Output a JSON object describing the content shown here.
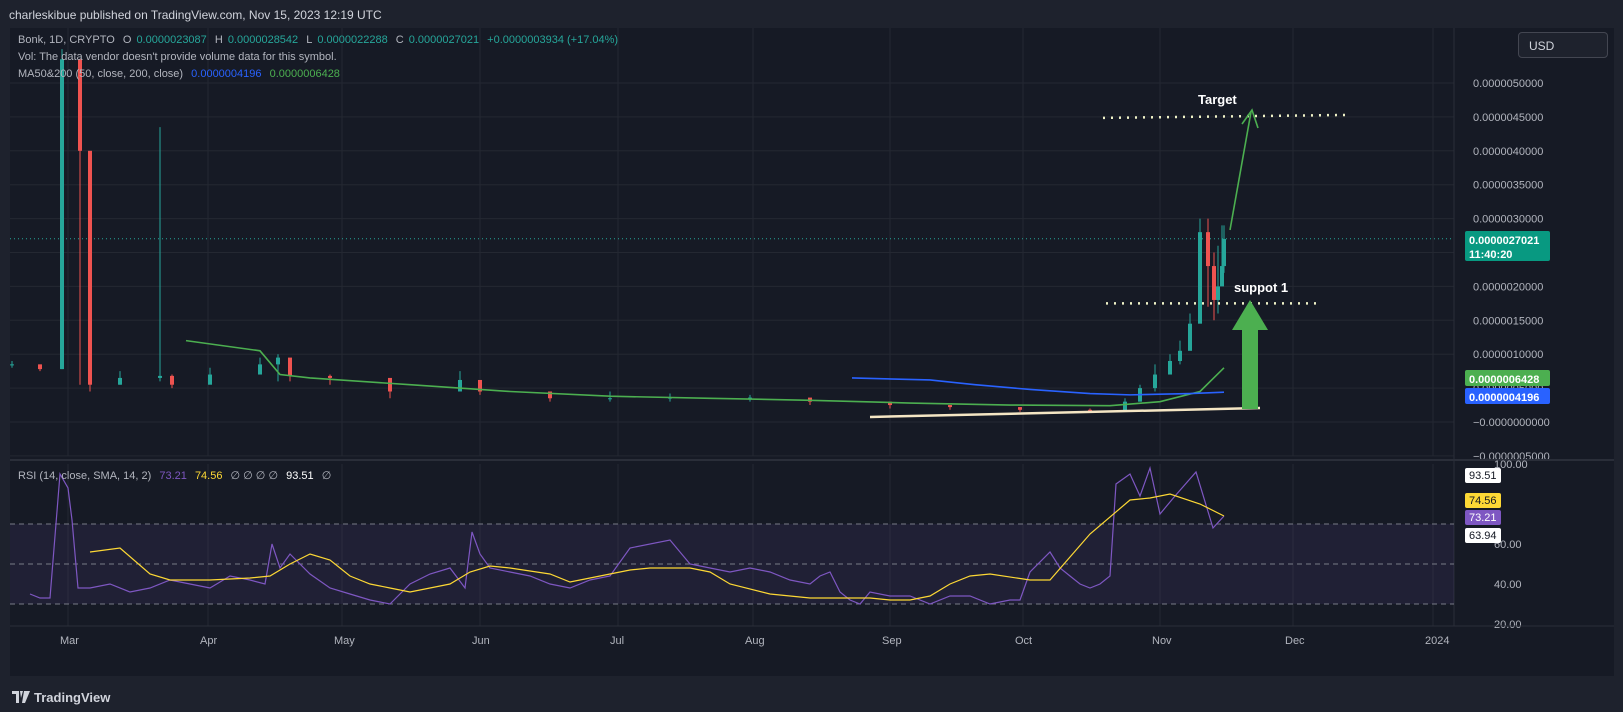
{
  "header": {
    "published": "charleskibue published on TradingView.com, Nov 15, 2023 12:19 UTC"
  },
  "legend": {
    "symbol": "Bonk, 1D, CRYPTO",
    "o_label": "O",
    "o": "0.0000023087",
    "h_label": "H",
    "h": "0.0000028542",
    "l_label": "L",
    "l": "0.0000022288",
    "c_label": "C",
    "c": "0.0000027021",
    "change": "+0.0000003934 (+17.04%)",
    "vol": "Vol: The data vendor doesn't provide volume data for this symbol.",
    "ma_label": "MA50&200 (50, close, 200, close)",
    "ma50": "0.0000004196",
    "ma200": "0.0000006428",
    "rsi_label": "RSI (14, close, SMA, 14, 2)",
    "rsi_value": "73.21",
    "rsi_sma": "74.56",
    "rsi_na": "∅ ∅ ∅ ∅",
    "rsi_extra": "93.51",
    "rsi_na2": "∅"
  },
  "currency_button": "USD",
  "price_axis": {
    "ticks": [
      "0.0000050000",
      "0.0000045000",
      "0.0000040000",
      "0.0000035000",
      "0.0000030000",
      "0.0000025000",
      "0.0000020000",
      "0.0000015000",
      "0.0000010000",
      "0.0000005000",
      "−0.0000000000",
      "−0.0000005000"
    ],
    "tick_values": [
      5.0,
      4.5,
      4.0,
      3.5,
      3.0,
      2.5,
      2.0,
      1.5,
      1.0,
      0.5,
      0.0,
      -0.5
    ],
    "current_price": "0.0000027021",
    "countdown": "11:40:20",
    "ma200_tag": "0.0000006428",
    "ma50_tag": "0.0000004196"
  },
  "rsi_axis": {
    "ticks": [
      "100.00",
      "60.00",
      "40.00",
      "20.00"
    ],
    "tick_values": [
      100,
      60,
      40,
      20
    ],
    "tags": [
      "93.51",
      "74.56",
      "73.21",
      "63.94"
    ],
    "tag_values": [
      93.51,
      74.56,
      73.21,
      63.94
    ]
  },
  "time_axis": {
    "labels": [
      "Mar",
      "Apr",
      "May",
      "Jun",
      "Jul",
      "Aug",
      "Sep",
      "Oct",
      "Nov",
      "Dec",
      "2024"
    ]
  },
  "annotations": {
    "target": "Target",
    "support": "suppot 1"
  },
  "footer": {
    "brand": "TradingView"
  },
  "colors": {
    "background": "#161a25",
    "up": "#26a69a",
    "down": "#ef5350",
    "ma50": "#2962ff",
    "ma200": "#4caf50",
    "rsi": "#7e57c2",
    "rsi_sma": "#fdd835",
    "grid": "#242832"
  },
  "chart_data": [
    {
      "type": "candlestick",
      "title": "Bonk, 1D, CRYPTO",
      "y_scale": "0.000001 units",
      "ylim": [
        -0.5,
        5.4
      ],
      "x": [
        "Feb 22",
        "Feb 26",
        "Feb 28",
        "Mar 1",
        "Mar 3",
        "Mar 10",
        "Mar 20",
        "Mar 23",
        "Apr 1",
        "Apr 15",
        "Apr 22",
        "Apr 25",
        "May 1",
        "May 15",
        "May 28",
        "Jun 1",
        "Jun 15",
        "Jul 1",
        "Jul 15",
        "Aug 1",
        "Aug 15",
        "Sep 1",
        "Sep 15",
        "Oct 1",
        "Oct 15",
        "Oct 20",
        "Oct 25",
        "Oct 28",
        "Nov 1",
        "Nov 3",
        "Nov 5",
        "Nov 7",
        "Nov 9",
        "Nov 10",
        "Nov 12",
        "Nov 14",
        "Nov 15"
      ],
      "close": [
        0.85,
        0.78,
        5.35,
        4.0,
        0.55,
        0.65,
        0.68,
        0.55,
        0.7,
        0.85,
        0.95,
        0.68,
        0.65,
        0.45,
        0.62,
        0.45,
        0.35,
        0.35,
        0.36,
        0.36,
        0.3,
        0.25,
        0.22,
        0.18,
        0.17,
        0.3,
        0.5,
        0.7,
        0.9,
        1.05,
        1.45,
        2.8,
        2.3,
        1.8,
        2.0,
        2.3,
        2.7
      ],
      "high": [
        0.9,
        0.85,
        5.5,
        4.5,
        0.7,
        0.75,
        4.35,
        0.7,
        0.8,
        0.95,
        1.0,
        0.75,
        0.7,
        0.55,
        0.75,
        0.5,
        0.4,
        0.45,
        0.42,
        0.4,
        0.35,
        0.3,
        0.25,
        0.22,
        0.2,
        0.35,
        0.55,
        0.85,
        1.0,
        1.2,
        1.6,
        3.0,
        3.0,
        2.5,
        2.6,
        2.9,
        2.9
      ],
      "low": [
        0.8,
        0.75,
        0.78,
        0.55,
        0.45,
        0.55,
        0.6,
        0.5,
        0.6,
        0.75,
        0.6,
        0.6,
        0.55,
        0.35,
        0.5,
        0.4,
        0.3,
        0.3,
        0.3,
        0.3,
        0.25,
        0.2,
        0.18,
        0.15,
        0.15,
        0.18,
        0.3,
        0.45,
        0.7,
        0.85,
        1.1,
        1.6,
        1.7,
        1.5,
        1.6,
        2.1,
        2.2
      ],
      "ma50": {
        "start": "Aug 22",
        "values": [
          0.65,
          0.62,
          0.55,
          0.48,
          0.42,
          0.4,
          0.42,
          0.44
        ]
      },
      "ma200": {
        "start": "Mar 23",
        "values": [
          1.2,
          1.05,
          0.7,
          0.65,
          0.55,
          0.45,
          0.38,
          0.35,
          0.32,
          0.28,
          0.25,
          0.24,
          0.3,
          0.45,
          0.8
        ]
      },
      "current_price": 2.7021,
      "annotations": [
        {
          "text": "Target",
          "level": 4.5
        },
        {
          "text": "suppot 1",
          "level": 1.75
        }
      ]
    },
    {
      "type": "line",
      "title": "RSI (14, close, SMA, 14, 2)",
      "ylim": [
        20,
        100
      ],
      "bands": [
        30,
        50,
        70
      ],
      "series": [
        {
          "name": "RSI",
          "values": [
            35,
            33,
            33,
            95,
            88,
            72,
            38,
            38,
            40,
            36,
            38,
            42,
            40,
            38,
            44,
            42,
            40,
            60,
            48,
            55,
            50,
            45,
            38,
            35,
            32,
            30,
            40,
            45,
            48,
            38,
            66,
            55,
            48,
            46,
            44,
            40,
            38,
            42,
            44,
            58,
            62,
            50,
            48,
            46,
            48,
            46,
            42,
            40,
            44,
            46,
            36,
            32,
            30,
            36,
            34,
            34,
            30,
            34,
            34,
            30,
            32,
            32,
            46,
            56,
            48,
            44,
            40,
            38,
            40,
            44,
            90,
            95,
            84,
            98,
            75,
            84,
            96,
            68,
            74
          ]
        },
        {
          "name": "RSI SMA",
          "values": [
            56,
            58,
            45,
            42,
            42,
            43,
            44,
            50,
            55,
            52,
            44,
            40,
            38,
            36,
            38,
            40,
            46,
            49,
            48,
            45,
            41,
            43,
            45,
            47,
            48,
            48,
            46,
            40,
            35,
            33,
            33,
            33,
            33,
            32,
            32,
            34,
            40,
            44,
            45,
            42,
            42,
            65,
            82,
            83,
            85,
            80,
            74
          ]
        }
      ]
    }
  ]
}
